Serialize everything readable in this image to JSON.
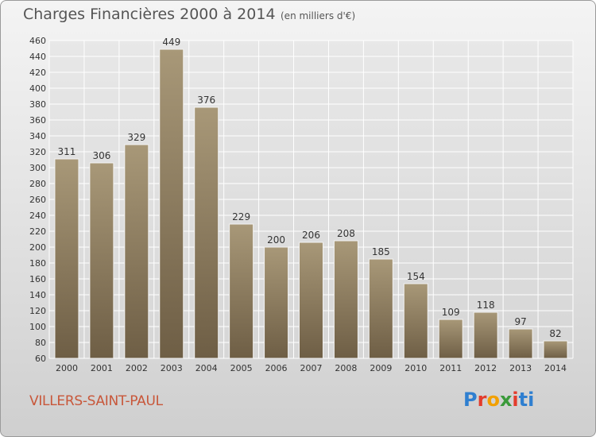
{
  "header": {
    "title": "Charges Financières 2000 à 2014",
    "subtitle": "(en milliers d'€)"
  },
  "footer": {
    "city": "VILLERS-SAINT-PAUL",
    "logo": "Proxiti"
  },
  "colors": {
    "bar_top": "#a89878",
    "bar_bottom": "#6e5e45",
    "grid": "#ffffff",
    "axis_text": "#333333"
  },
  "chart_data": {
    "type": "bar",
    "categories": [
      "2000",
      "2001",
      "2002",
      "2003",
      "2004",
      "2005",
      "2006",
      "2007",
      "2008",
      "2009",
      "2010",
      "2011",
      "2012",
      "2013",
      "2014"
    ],
    "values": [
      311,
      306,
      329,
      449,
      376,
      229,
      200,
      206,
      208,
      185,
      154,
      109,
      118,
      97,
      82
    ],
    "ylim": [
      60,
      460
    ],
    "yticks": [
      60,
      80,
      100,
      120,
      140,
      160,
      180,
      200,
      220,
      240,
      260,
      280,
      300,
      320,
      340,
      360,
      380,
      400,
      420,
      440,
      460
    ],
    "grid": true,
    "data_labels": true
  }
}
